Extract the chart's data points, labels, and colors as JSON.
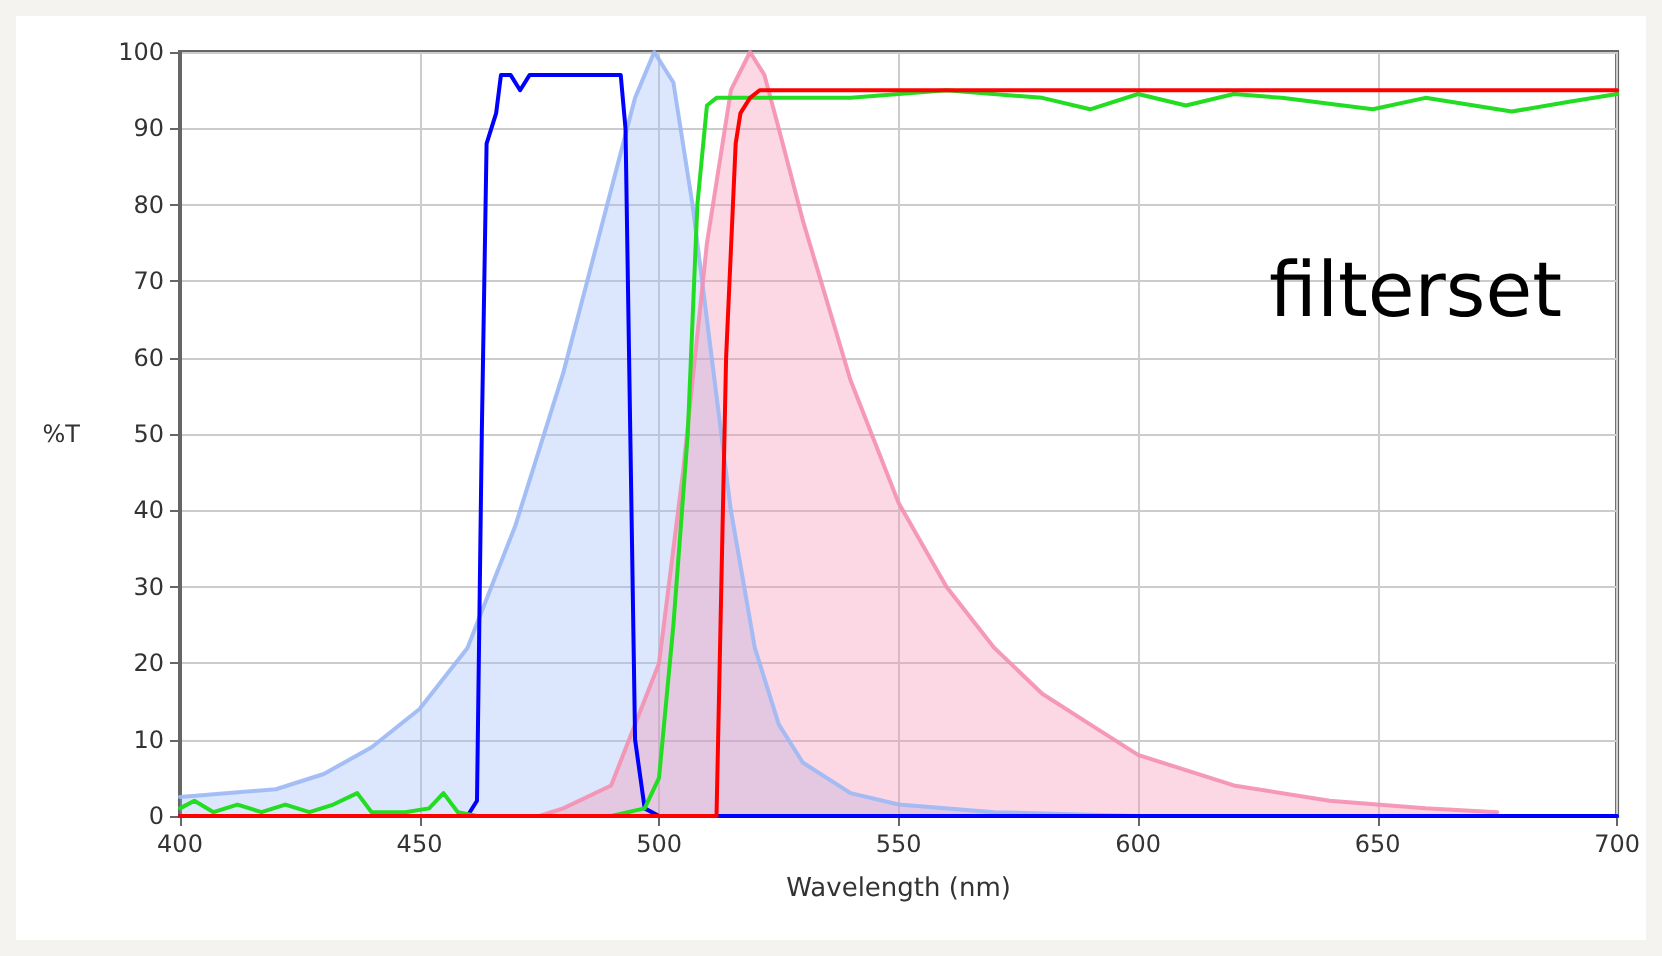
{
  "chart_data": {
    "type": "line",
    "xlabel": "Wavelength (nm)",
    "ylabel": "%T",
    "xlim": [
      400,
      700
    ],
    "xticks": [
      400,
      450,
      500,
      550,
      600,
      650,
      700
    ],
    "ylim": [
      0,
      100
    ],
    "yticks": [
      0,
      10,
      20,
      30,
      40,
      50,
      60,
      70,
      80,
      90,
      100
    ],
    "grid": true,
    "marker": "none",
    "line_style": "solid",
    "annotations": [
      "filterset"
    ],
    "series": [
      {
        "type": "area",
        "color": "#9bb8f5",
        "x": [
          400,
          420,
          430,
          440,
          450,
          460,
          465,
          470,
          475,
          480,
          485,
          490,
          495,
          499,
          503,
          507,
          510,
          515,
          520,
          525,
          530,
          540,
          550,
          570,
          600,
          700
        ],
        "values": [
          2.5,
          3.5,
          5.5,
          9,
          14,
          22,
          30,
          38,
          48,
          58,
          70,
          82,
          94,
          100,
          96,
          80,
          65,
          40,
          22,
          12,
          7,
          3,
          1.5,
          0.5,
          0,
          0
        ]
      },
      {
        "type": "area",
        "color": "#f48fb0",
        "x": [
          475,
          480,
          490,
          500,
          505,
          510,
          515,
          519,
          522,
          525,
          530,
          540,
          550,
          560,
          570,
          580,
          590,
          600,
          620,
          640,
          660,
          675
        ],
        "values": [
          0,
          1,
          4,
          20,
          45,
          75,
          95,
          100,
          97,
          90,
          78,
          57,
          41,
          30,
          22,
          16,
          12,
          8,
          4,
          2,
          1,
          0.5
        ]
      },
      {
        "color": "#0000ff",
        "x": [
          400,
          460,
          462,
          463,
          464,
          466,
          467,
          469,
          471,
          473,
          480,
          485,
          490,
          492,
          493,
          494,
          495,
          497,
          500,
          700
        ],
        "values": [
          0,
          0,
          2,
          50,
          88,
          92,
          97,
          97,
          95,
          97,
          97,
          97,
          97,
          97,
          90,
          50,
          10,
          1,
          0,
          0
        ]
      },
      {
        "color": "#22dd22",
        "x": [
          400,
          403,
          407,
          412,
          417,
          422,
          427,
          432,
          437,
          440,
          447,
          452,
          455,
          458,
          462,
          490,
          497,
          500,
          503,
          506,
          508,
          510,
          512,
          520,
          540,
          560,
          580,
          590,
          600,
          610,
          620,
          630,
          649,
          660,
          678,
          690,
          700
        ],
        "values": [
          1,
          2,
          0.5,
          1.5,
          0.5,
          1.5,
          0.5,
          1.5,
          3,
          0.5,
          0.5,
          1,
          3,
          0.5,
          0,
          0,
          1,
          5,
          25,
          50,
          80,
          93,
          94,
          94,
          94,
          95,
          94,
          92.5,
          94.5,
          93,
          94.5,
          94,
          92.5,
          94,
          92.2,
          93.5,
          94.5
        ]
      },
      {
        "color": "#ff0000",
        "x": [
          400,
          512,
          513,
          514,
          516,
          517,
          519,
          521,
          560,
          600,
          650,
          700
        ],
        "values": [
          0,
          0,
          30,
          60,
          88,
          92,
          94,
          95,
          95,
          95,
          95,
          95
        ]
      }
    ]
  }
}
